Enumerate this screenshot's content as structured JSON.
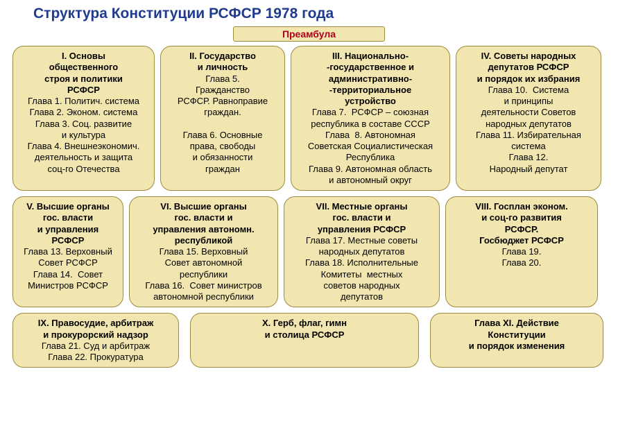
{
  "title": "Структура Конституции РСФСР 1978 года",
  "preamble": "Преамбула",
  "colors": {
    "title_color": "#1f3b8e",
    "preamble_text": "#b00020",
    "card_bg": "#f2e6b0",
    "card_border": "#9a8a40",
    "background": "#ffffff",
    "text": "#000000"
  },
  "row1": [
    {
      "hd": "I. Основы\nобщественного\nстроя и политики\nРСФСР",
      "bd": "Глава 1. Политич. система\nГлава 2. Эконом. система\nГлава 3. Соц. развитие\nи культура\nГлава 4. Внешнеэкономич.\nдеятельность и защита\nсоц-го Отечества"
    },
    {
      "hd": "II. Государство\nи личность",
      "bd": "Глава 5.\nГражданство\nРСФСР. Равноправие\nграждан.\n\nГлава 6. Основные\nправа, свободы\nи обязанности\nграждан"
    },
    {
      "hd": "III. Национально-\n-государственное и\nадминистративно-\n-территориальное\nустройство",
      "bd": "Глава 7.  РСФСР – союзная\nреспублика в составе СССР\nГлава  8. Автономная\nСоветская Социалистическая\nРеспублика\nГлава 9. Автономная область\nи автономный округ"
    },
    {
      "hd": "IV. Советы народных\nдепутатов РСФСР\nи порядок их избрания",
      "bd": "Глава 10.  Система\nи принципы\nдеятельности Советов\nнародных депутатов\nГлава 11. Избирательная\nсистема\nГлава 12.\nНародный депутат"
    }
  ],
  "row2": [
    {
      "hd": "V. Высшие органы\nгос. власти\nи управления\nРСФСР",
      "bd": "Глава 13. Верховный\nСовет РСФСР\nГлава 14.  Совет\nМинистров РСФСР"
    },
    {
      "hd": "VI. Высшие органы\nгос. власти и\nуправления автономн.\nреспубликой",
      "bd": "Глава 15. Верховный\nСовет автономной\nреспублики\nГлава 16.  Совет министров\nавтономной республики"
    },
    {
      "hd": "VII. Местные органы\nгос. власти и\nуправления РСФСР",
      "bd": "Глава 17. Местные советы\nнародных депутатов\nГлава 18. Исполнительные\nКомитеты  местных\nсоветов народных\nдепутатов"
    },
    {
      "hd": "VIII. Госплан эконом.\nи соц-го развития\nРСФСР.\nГосбюджет РСФСР",
      "bd": "Глава 19.\nГлава 20."
    }
  ],
  "row3": [
    {
      "hd": "IX. Правосудие, арбитраж\nи прокурорский надзор",
      "bd": "Глава 21. Суд и арбитраж\nГлава 22. Прокуратура"
    },
    {
      "hd": "X. Герб, флаг, гимн\nи столица РСФСР",
      "bd": ""
    },
    {
      "hd": "Глава XI. Действие\nКонституции\nи порядок изменения",
      "bd": ""
    }
  ]
}
